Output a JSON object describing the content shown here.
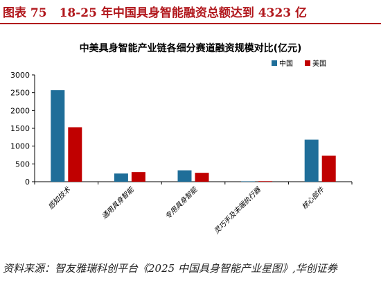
{
  "figure": {
    "label": "图表 75",
    "title": "18-25 年中国具身智能融资总额达到 4323 亿"
  },
  "chart_data": {
    "type": "bar",
    "title": "中美具身智能产业链各细分赛道融资规模对比(亿元)",
    "categories": [
      "感知技术",
      "通用具身智能",
      "专用具身智能",
      "灵巧手及末端执行器",
      "核心部件"
    ],
    "series": [
      {
        "name": "中国",
        "color": "#1f6e99",
        "values": [
          2570,
          230,
          320,
          5,
          1180
        ]
      },
      {
        "name": "美国",
        "color": "#c00000",
        "values": [
          1530,
          270,
          250,
          15,
          730
        ]
      }
    ],
    "ylim": [
      0,
      3000
    ],
    "yticks": [
      "0",
      "500",
      "1000",
      "1500",
      "2000",
      "2500",
      "3000"
    ],
    "legend_position": "top-right",
    "grid": false
  },
  "source": {
    "text": "资料来源：智友雅瑞科创平台《2025 中国具身智能产业星图》,华创证券"
  }
}
